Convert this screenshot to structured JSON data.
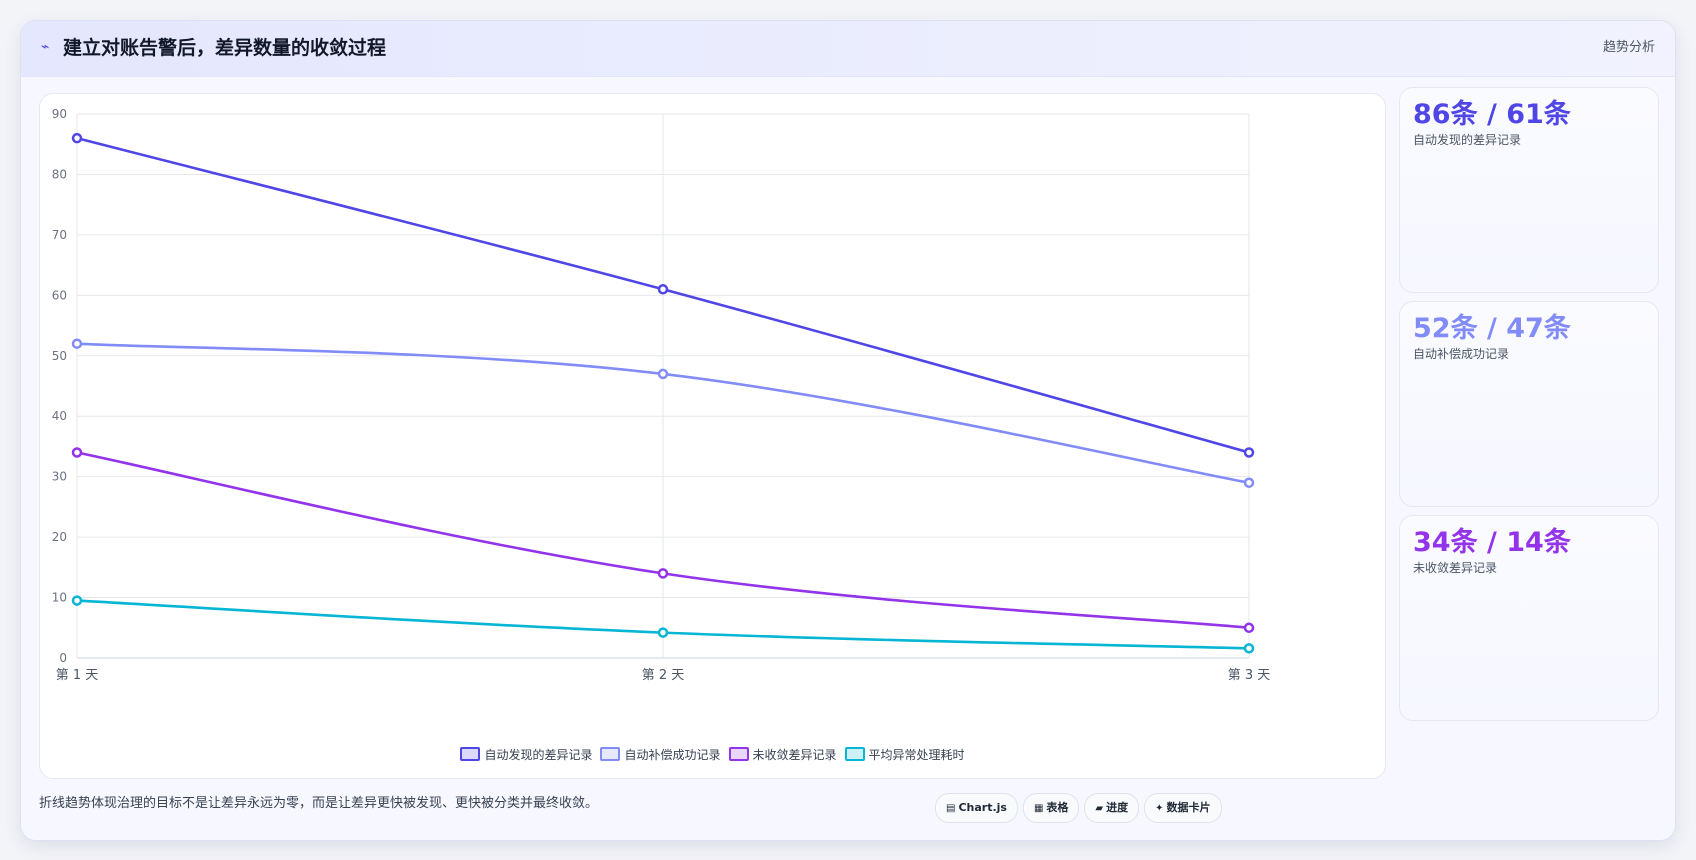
{
  "header": {
    "title": "建立对账告警后，差异数量的收敛过程",
    "icon": "spark-icon",
    "tag": "趋势分析"
  },
  "colors": {
    "series1": "#4f46e5",
    "series2": "#818cf8",
    "series3": "#9333ea",
    "series4": "#06b6d4"
  },
  "chart_data": {
    "type": "line",
    "title": "",
    "xlabel": "",
    "ylabel": "",
    "categories": [
      "第 1 天",
      "第 2 天",
      "第 3 天"
    ],
    "ylim": [
      0,
      90
    ],
    "yticks": [
      0,
      10,
      20,
      30,
      40,
      50,
      60,
      70,
      80,
      90
    ],
    "grid": true,
    "legend_position": "bottom",
    "series": [
      {
        "name": "自动发现的差异记录",
        "values": [
          86,
          61,
          34
        ],
        "color": "#4f46e5"
      },
      {
        "name": "自动补偿成功记录",
        "values": [
          52,
          47,
          29
        ],
        "color": "#818cf8"
      },
      {
        "name": "未收敛差异记录",
        "values": [
          34,
          14,
          5
        ],
        "color": "#9333ea"
      },
      {
        "name": "平均异常处理耗时",
        "values": [
          9.5,
          4.2,
          1.6
        ],
        "color": "#06b6d4"
      }
    ]
  },
  "stats": [
    {
      "value": "86条 / 61条",
      "label": "自动发现的差异记录",
      "color": "#4f46e5"
    },
    {
      "value": "52条 / 47条",
      "label": "自动补偿成功记录",
      "color": "#818cf8"
    },
    {
      "value": "34条 / 14条",
      "label": "未收敛差异记录",
      "color": "#9333ea"
    }
  ],
  "footer": {
    "note": "折线趋势体现治理的目标不是让差异永远为零，而是让差异更快被发现、更快被分类并最终收敛。",
    "pills": [
      {
        "label": "Chart.js",
        "icon": "chart-icon",
        "glyph": "▤"
      },
      {
        "label": "表格",
        "icon": "table-icon",
        "glyph": "▦"
      },
      {
        "label": "进度",
        "icon": "progress-icon",
        "glyph": "▰"
      },
      {
        "label": "数据卡片",
        "icon": "card-icon",
        "glyph": "✦"
      }
    ]
  }
}
